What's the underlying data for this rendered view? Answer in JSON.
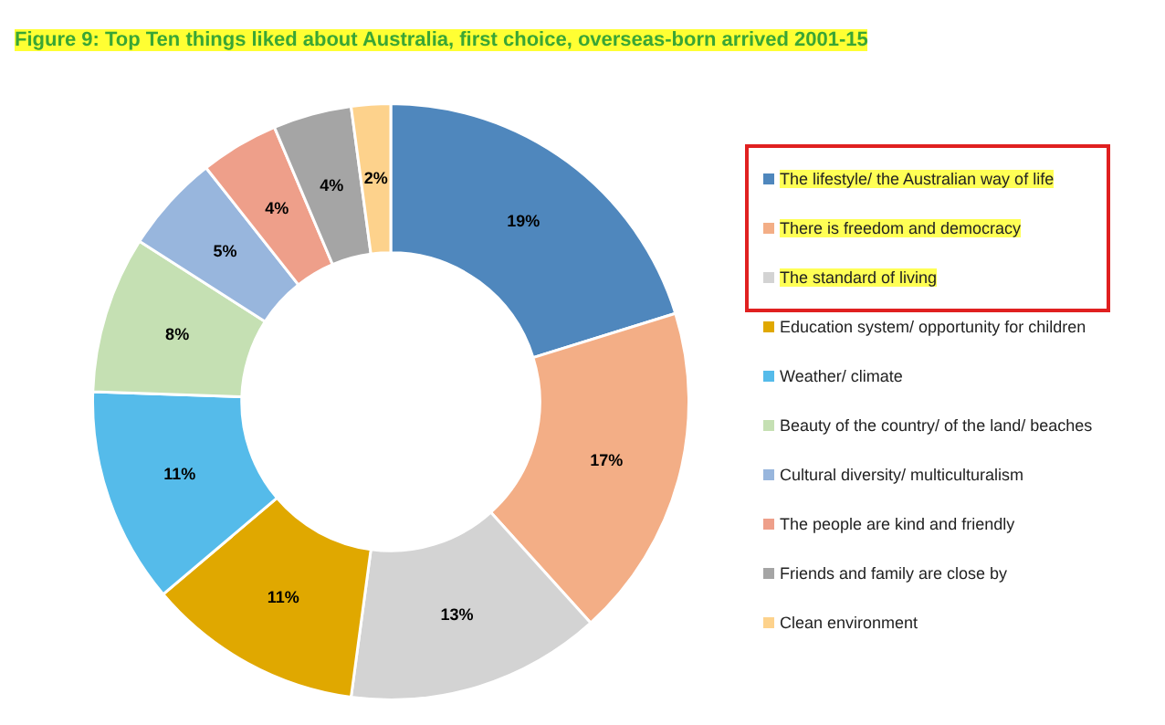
{
  "chart_data": {
    "type": "donut",
    "title": "Figure 9: Top Ten things liked about Australia, first choice, overseas-born arrived 2001-15",
    "categories": [
      "The lifestyle/ the Australian way of life",
      "There is freedom and democracy",
      "The standard of living",
      "Education system/ opportunity for children",
      "Weather/ climate",
      "Beauty of the country/ of the land/ beaches",
      "Cultural diversity/ multiculturalism",
      "The people are kind and friendly",
      "Friends and family are close by",
      "Clean environment"
    ],
    "values": [
      19,
      17,
      13,
      11,
      11,
      8,
      5,
      4,
      4,
      2
    ],
    "colors": [
      "#4f87bd",
      "#f3ae86",
      "#d3d3d3",
      "#e0a800",
      "#55bbea",
      "#c5e0b3",
      "#98b6dd",
      "#ee9f8a",
      "#a5a5a5",
      "#fdd28c"
    ],
    "value_labels": [
      "19%",
      "17%",
      "13%",
      "11%",
      "11%",
      "8%",
      "5%",
      "4%",
      "4%",
      "2%"
    ],
    "legend": "right"
  }
}
